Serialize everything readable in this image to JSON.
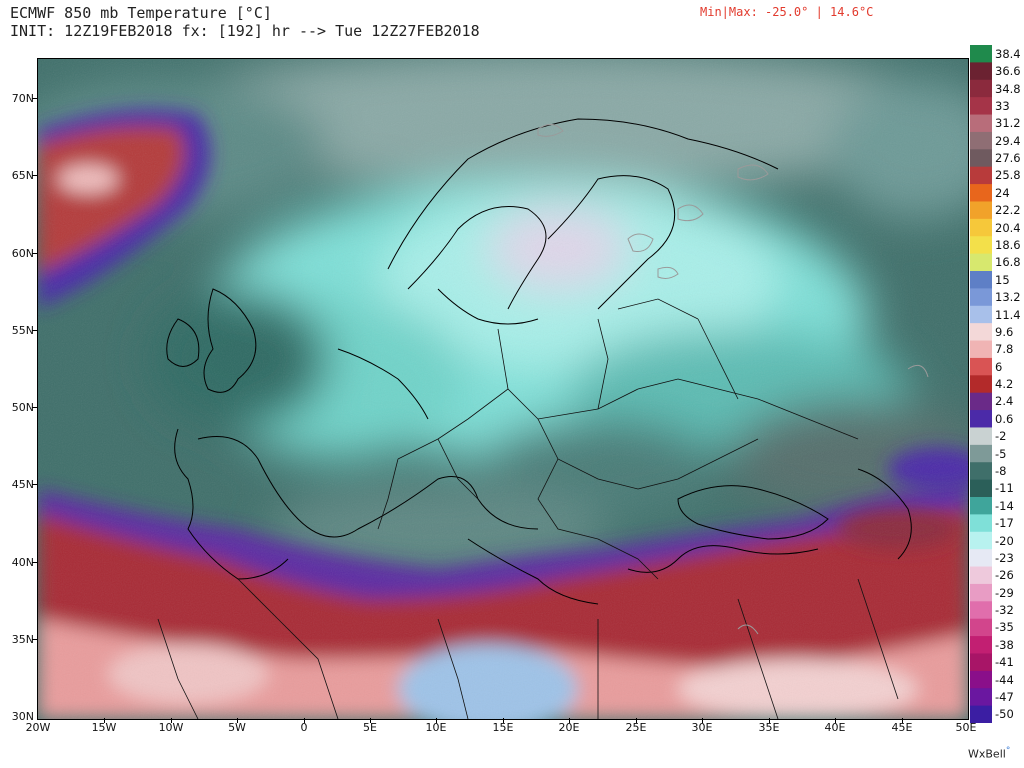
{
  "header": {
    "title_line1": "ECMWF 850 mb Temperature [°C]",
    "title_line2": "INIT: 12Z19FEB2018 fx: [192] hr --> Tue 12Z27FEB2018",
    "minmax": "Min|Max: -25.0° | 14.6°C",
    "minmax_color": "#e23b2e"
  },
  "map": {
    "latitude_labels": [
      "70N",
      "65N",
      "60N",
      "55N",
      "50N",
      "45N",
      "40N",
      "35N",
      "30N"
    ],
    "longitude_labels": [
      "20W",
      "15W",
      "10W",
      "5W",
      "0",
      "5E",
      "10E",
      "15E",
      "20E",
      "25E",
      "30E",
      "35E",
      "40E",
      "45E",
      "50E"
    ]
  },
  "legend": {
    "labels": [
      "38.4",
      "36.6",
      "34.8",
      "33",
      "31.2",
      "29.4",
      "27.6",
      "25.8",
      "24",
      "22.2",
      "20.4",
      "18.6",
      "16.8",
      "15",
      "13.2",
      "11.4",
      "9.6",
      "7.8",
      "6",
      "4.2",
      "2.4",
      "0.6",
      "-2",
      "-5",
      "-8",
      "-11",
      "-14",
      "-17",
      "-20",
      "-23",
      "-26",
      "-29",
      "-32",
      "-35",
      "-38",
      "-41",
      "-44",
      "-47",
      "-50"
    ],
    "colors": [
      "#1f8a4c",
      "#6b2231",
      "#8b2a3d",
      "#a53448",
      "#b86d7a",
      "#8f6e74",
      "#6f5a5f",
      "#b83b3b",
      "#e8661c",
      "#f1a22a",
      "#f6c83a",
      "#f3e04a",
      "#d7e86e",
      "#5e7fc6",
      "#7a98d8",
      "#a8c0ea",
      "#f3d8d8",
      "#f0b4b4",
      "#d95454",
      "#b32a2a",
      "#6a2a88",
      "#4b2aa8",
      "#c9d2d2",
      "#7e9a98",
      "#3f6f6a",
      "#2b5f59",
      "#3fa59b",
      "#7fe0d8",
      "#b8f2ef",
      "#e6e9f4",
      "#eec9dc",
      "#e89cc4",
      "#e06eac",
      "#d2458c",
      "#c21f72",
      "#a81567",
      "#8a0f8a",
      "#6a17a0",
      "#3b1ea3"
    ]
  },
  "brand": {
    "name": "WxBell",
    "mark": "°"
  }
}
